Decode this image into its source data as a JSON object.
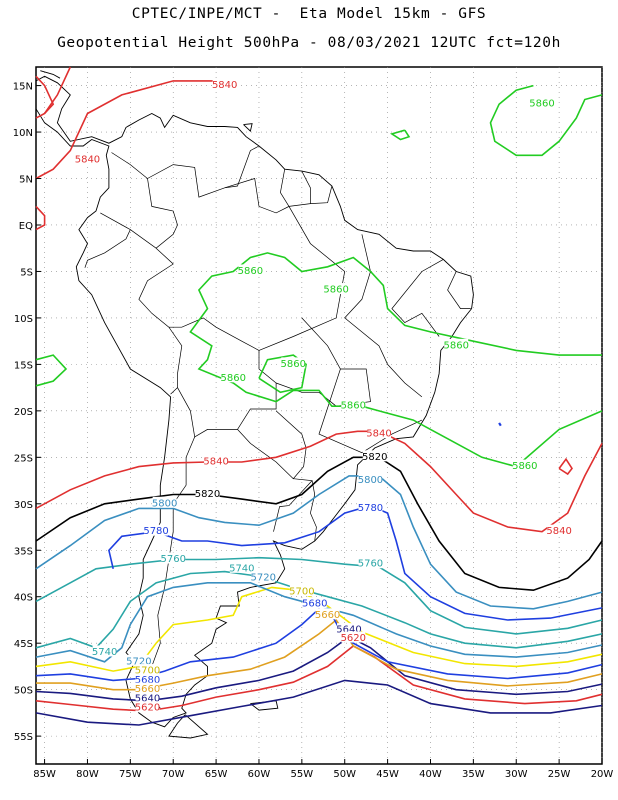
{
  "title_line1": "CPTEC/INPE/MCT -  Eta Model 15km - GFS",
  "title_line2": "Geopotential Height 500hPa - 08/03/2021 12UTC fct=120h",
  "axes": {
    "lat_ticks": [
      "15N",
      "10N",
      "5N",
      "EQ",
      "5S",
      "10S",
      "15S",
      "20S",
      "25S",
      "30S",
      "35S",
      "40S",
      "45S",
      "50S",
      "55S"
    ],
    "lat_values": [
      15,
      10,
      5,
      0,
      -5,
      -10,
      -15,
      -20,
      -25,
      -30,
      -35,
      -40,
      -45,
      -50,
      -55
    ],
    "lon_ticks": [
      "85W",
      "80W",
      "75W",
      "70W",
      "65W",
      "60W",
      "55W",
      "50W",
      "45W",
      "40W",
      "35W",
      "30W",
      "25W",
      "20W"
    ],
    "lon_values": [
      -85,
      -80,
      -75,
      -70,
      -65,
      -60,
      -55,
      -50,
      -45,
      -40,
      -35,
      -30,
      -25,
      -20
    ],
    "lon_range": [
      -86,
      -20
    ],
    "lat_range": [
      -58,
      17
    ],
    "grid": "dotted"
  },
  "contours": [
    {
      "level": "5860",
      "color": "#22cc22"
    },
    {
      "level": "5840",
      "color": "#e03030"
    },
    {
      "level": "5820",
      "color": "#000000"
    },
    {
      "level": "5800",
      "color": "#3a8fc0"
    },
    {
      "level": "5780",
      "color": "#1f3fe0"
    },
    {
      "level": "5760",
      "color": "#2aa6a6"
    },
    {
      "level": "5740",
      "color": "#2aa6a6"
    },
    {
      "level": "5720",
      "color": "#3a8fc0"
    },
    {
      "level": "5700",
      "color": "#f2e600"
    },
    {
      "level": "5680",
      "color": "#1f3fe0"
    },
    {
      "level": "5660",
      "color": "#e0a020"
    },
    {
      "level": "5640",
      "color": "#1a1a80"
    },
    {
      "level": "5620",
      "color": "#e03030"
    }
  ],
  "contour_labels": [
    {
      "text": "5840",
      "lon": -80,
      "lat": 7,
      "color": "#e03030"
    },
    {
      "text": "5840",
      "lon": -64,
      "lat": 15,
      "color": "#e03030"
    },
    {
      "text": "5860",
      "lon": -27,
      "lat": 13,
      "color": "#22cc22"
    },
    {
      "text": "5860",
      "lon": -61,
      "lat": -5,
      "color": "#22cc22"
    },
    {
      "text": "5860",
      "lon": -51,
      "lat": -7,
      "color": "#22cc22"
    },
    {
      "text": "5860",
      "lon": -37,
      "lat": -13,
      "color": "#22cc22"
    },
    {
      "text": "5860",
      "lon": -56,
      "lat": -15,
      "color": "#22cc22"
    },
    {
      "text": "5860",
      "lon": -63,
      "lat": -16.5,
      "color": "#22cc22"
    },
    {
      "text": "5860",
      "lon": -49,
      "lat": -19.5,
      "color": "#22cc22"
    },
    {
      "text": "5860",
      "lon": -29,
      "lat": -26,
      "color": "#22cc22"
    },
    {
      "text": "5840",
      "lon": -46,
      "lat": -22.5,
      "color": "#e03030"
    },
    {
      "text": "5840",
      "lon": -65,
      "lat": -25.5,
      "color": "#e03030"
    },
    {
      "text": "5840",
      "lon": -25,
      "lat": -33,
      "color": "#e03030"
    },
    {
      "text": "5820",
      "lon": -46.5,
      "lat": -25,
      "color": "#000000"
    },
    {
      "text": "5820",
      "lon": -66,
      "lat": -29,
      "color": "#000000"
    },
    {
      "text": "5800",
      "lon": -47,
      "lat": -27.5,
      "color": "#3a8fc0"
    },
    {
      "text": "5800",
      "lon": -71,
      "lat": -30,
      "color": "#3a8fc0"
    },
    {
      "text": "5780",
      "lon": -47,
      "lat": -30.5,
      "color": "#1f3fe0"
    },
    {
      "text": "5780",
      "lon": -72,
      "lat": -33,
      "color": "#1f3fe0"
    },
    {
      "text": "5760",
      "lon": -70,
      "lat": -36,
      "color": "#2aa6a6"
    },
    {
      "text": "5760",
      "lon": -47,
      "lat": -36.5,
      "color": "#2aa6a6"
    },
    {
      "text": "5740",
      "lon": -62,
      "lat": -37,
      "color": "#2aa6a6"
    },
    {
      "text": "5740",
      "lon": -78,
      "lat": -46,
      "color": "#2aa6a6"
    },
    {
      "text": "5720",
      "lon": -59.5,
      "lat": -38,
      "color": "#3a8fc0"
    },
    {
      "text": "5720",
      "lon": -74,
      "lat": -47,
      "color": "#3a8fc0"
    },
    {
      "text": "5700",
      "lon": -55,
      "lat": -39.5,
      "color": "#c8b800"
    },
    {
      "text": "5700",
      "lon": -73,
      "lat": -48,
      "color": "#c8b800"
    },
    {
      "text": "5680",
      "lon": -53.5,
      "lat": -40.8,
      "color": "#1f3fe0"
    },
    {
      "text": "5680",
      "lon": -73,
      "lat": -49,
      "color": "#1f3fe0"
    },
    {
      "text": "5660",
      "lon": -52,
      "lat": -42,
      "color": "#e0a020"
    },
    {
      "text": "5660",
      "lon": -73,
      "lat": -50,
      "color": "#e0a020"
    },
    {
      "text": "5640",
      "lon": -49.5,
      "lat": -43.6,
      "color": "#1a1a80"
    },
    {
      "text": "5640",
      "lon": -73,
      "lat": -51,
      "color": "#1a1a80"
    },
    {
      "text": "5620",
      "lon": -49,
      "lat": -44.5,
      "color": "#e03030"
    },
    {
      "text": "5620",
      "lon": -73,
      "lat": -52,
      "color": "#e03030"
    }
  ]
}
